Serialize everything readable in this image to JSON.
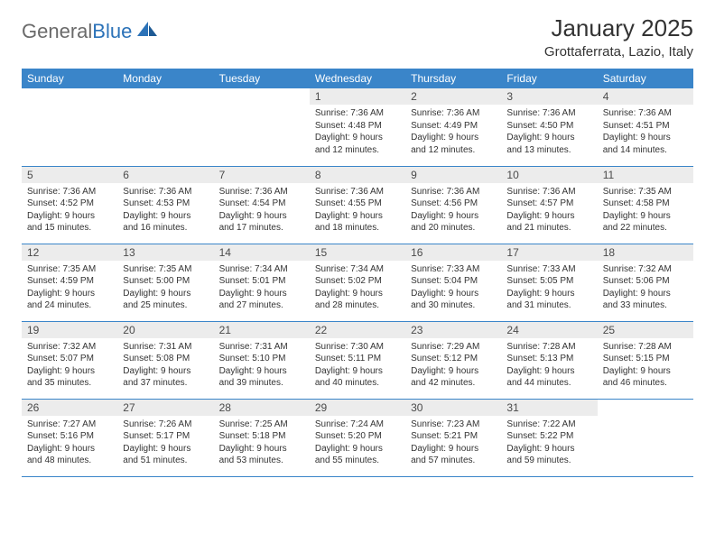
{
  "brand": {
    "part1": "General",
    "part2": "Blue"
  },
  "title": "January 2025",
  "location": "Grottaferrata, Lazio, Italy",
  "colors": {
    "header_bg": "#3a85c9",
    "header_text": "#ffffff",
    "daynum_bg": "#ececec",
    "text": "#333333",
    "rule": "#3a85c9",
    "brand_gray": "#6a6a6a",
    "brand_blue": "#2b72b8",
    "page_bg": "#ffffff"
  },
  "weekdays": [
    "Sunday",
    "Monday",
    "Tuesday",
    "Wednesday",
    "Thursday",
    "Friday",
    "Saturday"
  ],
  "first_weekday_index": 3,
  "days": [
    {
      "n": 1,
      "sunrise": "7:36 AM",
      "sunset": "4:48 PM",
      "daylight": "9 hours and 12 minutes."
    },
    {
      "n": 2,
      "sunrise": "7:36 AM",
      "sunset": "4:49 PM",
      "daylight": "9 hours and 12 minutes."
    },
    {
      "n": 3,
      "sunrise": "7:36 AM",
      "sunset": "4:50 PM",
      "daylight": "9 hours and 13 minutes."
    },
    {
      "n": 4,
      "sunrise": "7:36 AM",
      "sunset": "4:51 PM",
      "daylight": "9 hours and 14 minutes."
    },
    {
      "n": 5,
      "sunrise": "7:36 AM",
      "sunset": "4:52 PM",
      "daylight": "9 hours and 15 minutes."
    },
    {
      "n": 6,
      "sunrise": "7:36 AM",
      "sunset": "4:53 PM",
      "daylight": "9 hours and 16 minutes."
    },
    {
      "n": 7,
      "sunrise": "7:36 AM",
      "sunset": "4:54 PM",
      "daylight": "9 hours and 17 minutes."
    },
    {
      "n": 8,
      "sunrise": "7:36 AM",
      "sunset": "4:55 PM",
      "daylight": "9 hours and 18 minutes."
    },
    {
      "n": 9,
      "sunrise": "7:36 AM",
      "sunset": "4:56 PM",
      "daylight": "9 hours and 20 minutes."
    },
    {
      "n": 10,
      "sunrise": "7:36 AM",
      "sunset": "4:57 PM",
      "daylight": "9 hours and 21 minutes."
    },
    {
      "n": 11,
      "sunrise": "7:35 AM",
      "sunset": "4:58 PM",
      "daylight": "9 hours and 22 minutes."
    },
    {
      "n": 12,
      "sunrise": "7:35 AM",
      "sunset": "4:59 PM",
      "daylight": "9 hours and 24 minutes."
    },
    {
      "n": 13,
      "sunrise": "7:35 AM",
      "sunset": "5:00 PM",
      "daylight": "9 hours and 25 minutes."
    },
    {
      "n": 14,
      "sunrise": "7:34 AM",
      "sunset": "5:01 PM",
      "daylight": "9 hours and 27 minutes."
    },
    {
      "n": 15,
      "sunrise": "7:34 AM",
      "sunset": "5:02 PM",
      "daylight": "9 hours and 28 minutes."
    },
    {
      "n": 16,
      "sunrise": "7:33 AM",
      "sunset": "5:04 PM",
      "daylight": "9 hours and 30 minutes."
    },
    {
      "n": 17,
      "sunrise": "7:33 AM",
      "sunset": "5:05 PM",
      "daylight": "9 hours and 31 minutes."
    },
    {
      "n": 18,
      "sunrise": "7:32 AM",
      "sunset": "5:06 PM",
      "daylight": "9 hours and 33 minutes."
    },
    {
      "n": 19,
      "sunrise": "7:32 AM",
      "sunset": "5:07 PM",
      "daylight": "9 hours and 35 minutes."
    },
    {
      "n": 20,
      "sunrise": "7:31 AM",
      "sunset": "5:08 PM",
      "daylight": "9 hours and 37 minutes."
    },
    {
      "n": 21,
      "sunrise": "7:31 AM",
      "sunset": "5:10 PM",
      "daylight": "9 hours and 39 minutes."
    },
    {
      "n": 22,
      "sunrise": "7:30 AM",
      "sunset": "5:11 PM",
      "daylight": "9 hours and 40 minutes."
    },
    {
      "n": 23,
      "sunrise": "7:29 AM",
      "sunset": "5:12 PM",
      "daylight": "9 hours and 42 minutes."
    },
    {
      "n": 24,
      "sunrise": "7:28 AM",
      "sunset": "5:13 PM",
      "daylight": "9 hours and 44 minutes."
    },
    {
      "n": 25,
      "sunrise": "7:28 AM",
      "sunset": "5:15 PM",
      "daylight": "9 hours and 46 minutes."
    },
    {
      "n": 26,
      "sunrise": "7:27 AM",
      "sunset": "5:16 PM",
      "daylight": "9 hours and 48 minutes."
    },
    {
      "n": 27,
      "sunrise": "7:26 AM",
      "sunset": "5:17 PM",
      "daylight": "9 hours and 51 minutes."
    },
    {
      "n": 28,
      "sunrise": "7:25 AM",
      "sunset": "5:18 PM",
      "daylight": "9 hours and 53 minutes."
    },
    {
      "n": 29,
      "sunrise": "7:24 AM",
      "sunset": "5:20 PM",
      "daylight": "9 hours and 55 minutes."
    },
    {
      "n": 30,
      "sunrise": "7:23 AM",
      "sunset": "5:21 PM",
      "daylight": "9 hours and 57 minutes."
    },
    {
      "n": 31,
      "sunrise": "7:22 AM",
      "sunset": "5:22 PM",
      "daylight": "9 hours and 59 minutes."
    }
  ],
  "labels": {
    "sunrise": "Sunrise:",
    "sunset": "Sunset:",
    "daylight": "Daylight:"
  }
}
